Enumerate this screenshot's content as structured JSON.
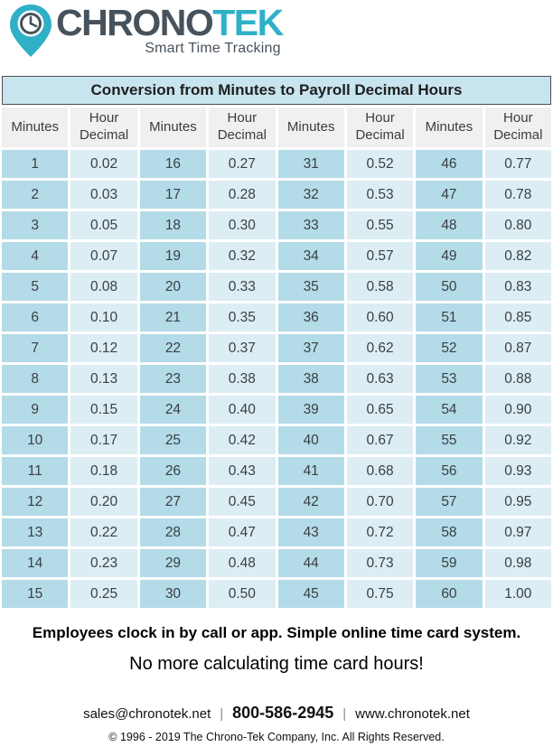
{
  "logo": {
    "brand_primary": "CHRONO",
    "brand_secondary": "TEK",
    "tagline": "Smart Time Tracking"
  },
  "colors": {
    "brand_teal": "#2fb0c7",
    "brand_dark": "#47525c",
    "table_title_bg": "#c8e4ee",
    "table_header_bg": "#f0f0f1",
    "minutes_cell_bg": "#b4dbe8",
    "decimal_cell_bg": "#ddedf4",
    "table_text": "#3a3f44"
  },
  "table": {
    "title": "Conversion from Minutes to Payroll Decimal Hours",
    "headers": [
      "Minutes",
      "Hour Decimal",
      "Minutes",
      "Hour Decimal",
      "Minutes",
      "Hour Decimal",
      "Minutes",
      "Hour Decimal"
    ],
    "rows": [
      [
        "1",
        "0.02",
        "16",
        "0.27",
        "31",
        "0.52",
        "46",
        "0.77"
      ],
      [
        "2",
        "0.03",
        "17",
        "0.28",
        "32",
        "0.53",
        "47",
        "0.78"
      ],
      [
        "3",
        "0.05",
        "18",
        "0.30",
        "33",
        "0.55",
        "48",
        "0.80"
      ],
      [
        "4",
        "0.07",
        "19",
        "0.32",
        "34",
        "0.57",
        "49",
        "0.82"
      ],
      [
        "5",
        "0.08",
        "20",
        "0.33",
        "35",
        "0.58",
        "50",
        "0.83"
      ],
      [
        "6",
        "0.10",
        "21",
        "0.35",
        "36",
        "0.60",
        "51",
        "0.85"
      ],
      [
        "7",
        "0.12",
        "22",
        "0.37",
        "37",
        "0.62",
        "52",
        "0.87"
      ],
      [
        "8",
        "0.13",
        "23",
        "0.38",
        "38",
        "0.63",
        "53",
        "0.88"
      ],
      [
        "9",
        "0.15",
        "24",
        "0.40",
        "39",
        "0.65",
        "54",
        "0.90"
      ],
      [
        "10",
        "0.17",
        "25",
        "0.42",
        "40",
        "0.67",
        "55",
        "0.92"
      ],
      [
        "11",
        "0.18",
        "26",
        "0.43",
        "41",
        "0.68",
        "56",
        "0.93"
      ],
      [
        "12",
        "0.20",
        "27",
        "0.45",
        "42",
        "0.70",
        "57",
        "0.95"
      ],
      [
        "13",
        "0.22",
        "28",
        "0.47",
        "43",
        "0.72",
        "58",
        "0.97"
      ],
      [
        "14",
        "0.23",
        "29",
        "0.48",
        "44",
        "0.73",
        "59",
        "0.98"
      ],
      [
        "15",
        "0.25",
        "30",
        "0.50",
        "45",
        "0.75",
        "60",
        "1.00"
      ]
    ]
  },
  "promo": {
    "line1": "Employees clock in by call or app. Simple online time card system.",
    "line2": "No more calculating time card hours!"
  },
  "footer": {
    "email": "sales@chronotek.net",
    "phone": "800-586-2945",
    "website": "www.chronotek.net",
    "separator": "|",
    "copyright": "© 1996 - 2019 The Chrono-Tek Company, Inc. All Rights Reserved."
  }
}
